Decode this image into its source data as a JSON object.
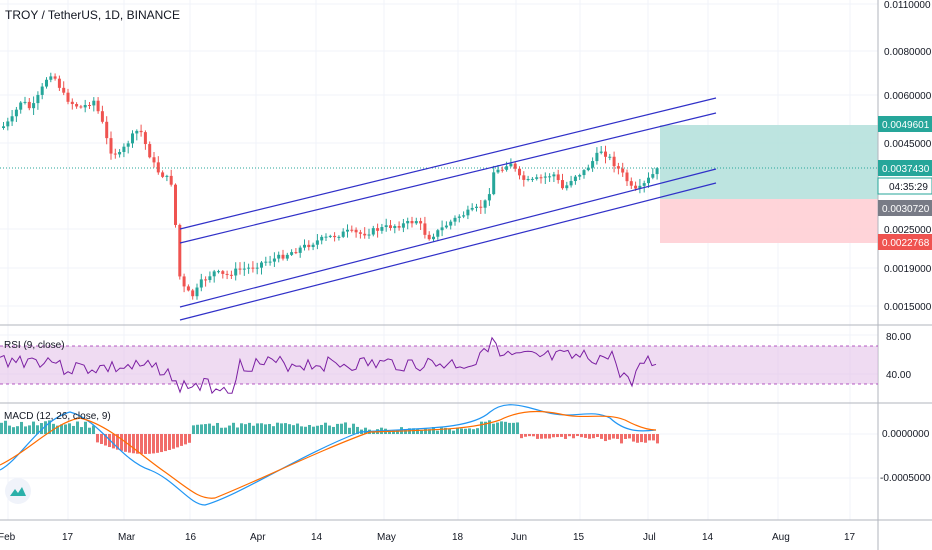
{
  "header": {
    "symbol_title": "TROY / TetherUS, 1D, BINANCE"
  },
  "panes": {
    "rsi_label": "RSI (9, close)",
    "macd_label": "MACD (12, 26, close, 9)"
  },
  "price_axis": {
    "ticks": [
      "0.0110000",
      "0.0080000",
      "0.0060000",
      "0.0045000",
      "0.0025000",
      "0.0019000",
      "0.0015000"
    ],
    "badges": [
      {
        "name": "target-price-badge",
        "text": "0.0049601",
        "color": "#26a69a"
      },
      {
        "name": "last-price-badge",
        "text": "0.0037430",
        "color": "#26a69a"
      },
      {
        "name": "countdown-badge",
        "text": "04:35:29",
        "color": "#ffffff"
      },
      {
        "name": "entry-price-badge",
        "text": "0.0030720",
        "color": "#787b86"
      },
      {
        "name": "stop-price-badge",
        "text": "0.0022768",
        "color": "#ef5350"
      }
    ]
  },
  "rsi_axis": {
    "ticks": [
      "80.00",
      "40.00"
    ]
  },
  "macd_axis": {
    "ticks": [
      "0.0000000",
      "-0.0005000"
    ]
  },
  "time_axis": {
    "labels": [
      "Feb",
      "17",
      "Mar",
      "16",
      "Apr",
      "14",
      "May",
      "18",
      "Jun",
      "15",
      "Jul",
      "14",
      "Aug",
      "17"
    ]
  },
  "colors": {
    "up": "#26a69a",
    "down": "#ef5350",
    "channel": "#3030c8",
    "rsi_line": "#7b1fa2",
    "rsi_band": "#e1bee7",
    "macd_line": "#2196f3",
    "signal_line": "#ff6d00",
    "target_zone": "#b2dfdb",
    "stop_zone": "#ffcdd2"
  },
  "icons": {
    "logo": "tradingview-logo-icon"
  }
}
